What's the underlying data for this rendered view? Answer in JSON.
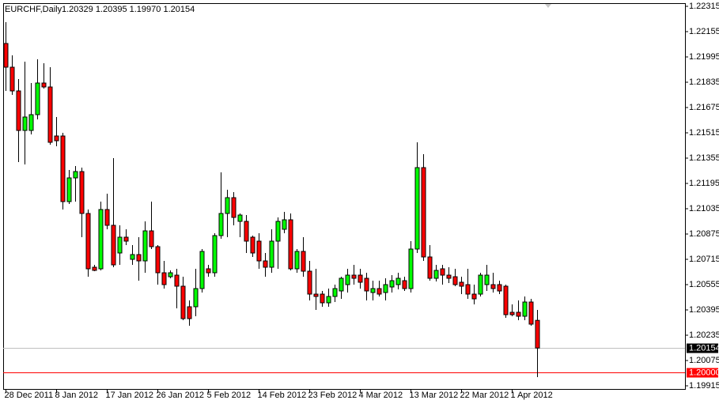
{
  "chart_data": {
    "type": "candlestick",
    "title": "EURCHF,Daily",
    "quote": "1.20329 1.20395 1.19970 1.20154",
    "categories": [
      "28 Dec 2011",
      null,
      null,
      null,
      null,
      null,
      null,
      null,
      "8 Jan 2012",
      null,
      null,
      null,
      null,
      null,
      null,
      null,
      "17 Jan 2012",
      null,
      null,
      null,
      null,
      null,
      null,
      null,
      "26 Jan 2012",
      null,
      null,
      null,
      null,
      null,
      null,
      null,
      "5 Feb 2012",
      null,
      null,
      null,
      null,
      null,
      null,
      null,
      "14 Feb 2012",
      null,
      null,
      null,
      null,
      null,
      null,
      null,
      "23 Feb 2012",
      null,
      null,
      null,
      null,
      null,
      null,
      null,
      "4 Mar 2012",
      null,
      null,
      null,
      null,
      null,
      null,
      null,
      "13 Mar 2012",
      null,
      null,
      null,
      null,
      null,
      null,
      null,
      "22 Mar 2012",
      null,
      null,
      null,
      null,
      null,
      null,
      null,
      "1 Apr 2012",
      null,
      null,
      null,
      null
    ],
    "open": [
      1.2208,
      1.2193,
      1.2178,
      1.2153,
      1.2153,
      1.2163,
      1.2183,
      1.21805,
      1.21495,
      1.21495,
      1.2108,
      1.2123,
      1.2127,
      1.21005,
      1.20665,
      1.20655,
      1.2103,
      1.2093,
      1.20755,
      1.20855,
      1.20715,
      1.20745,
      1.20705,
      1.20895,
      1.20795,
      1.2063,
      1.20605,
      1.20615,
      1.20545,
      1.20415,
      1.20415,
      1.2053,
      1.20655,
      1.2063,
      1.20865,
      1.21005,
      1.21105,
      1.20955,
      1.20955,
      1.20855,
      1.2083,
      1.20705,
      1.20665,
      1.2083,
      1.20905,
      1.20965,
      1.20655,
      1.20765,
      1.2064,
      1.20495,
      1.20495,
      1.2044,
      1.2048,
      1.20515,
      1.20555,
      1.20615,
      1.20615,
      1.20595,
      1.20505,
      1.2053,
      1.20505,
      1.2054,
      1.20555,
      1.2058,
      1.2053,
      1.2078,
      1.21295,
      1.2073,
      1.20595,
      1.20655,
      1.20615,
      1.20605,
      1.2057,
      1.20555,
      1.20495,
      1.20495,
      1.20555,
      1.20555,
      1.20555,
      1.20545,
      1.2038,
      1.2038,
      1.20355,
      1.20445,
      1.20329
    ],
    "high": [
      1.22215,
      1.22005,
      1.21855,
      1.21965,
      1.2183,
      1.2198,
      1.21955,
      1.2193,
      1.21615,
      1.21515,
      1.2128,
      1.21305,
      1.21295,
      1.2103,
      1.2068,
      1.2108,
      1.2113,
      1.21355,
      1.2093,
      1.20905,
      1.20805,
      1.20855,
      1.20955,
      1.2108,
      1.20805,
      1.20705,
      1.20645,
      1.20655,
      1.20605,
      1.20455,
      1.20655,
      1.2078,
      1.2068,
      1.2088,
      1.21265,
      1.21155,
      1.2114,
      1.21005,
      1.20995,
      1.20865,
      1.2088,
      1.20755,
      1.20905,
      1.2098,
      1.21015,
      1.21005,
      1.2078,
      1.20855,
      1.20705,
      1.20655,
      1.20515,
      1.2053,
      1.20555,
      1.20605,
      1.20655,
      1.2068,
      1.20655,
      1.2063,
      1.2058,
      1.2058,
      1.20595,
      1.20615,
      1.2063,
      1.20605,
      1.2083,
      1.21455,
      1.2138,
      1.20805,
      1.2068,
      1.2068,
      1.20665,
      1.20655,
      1.20605,
      1.20655,
      1.20555,
      1.2063,
      1.2068,
      1.2063,
      1.2058,
      1.20555,
      1.2043,
      1.20455,
      1.2048,
      1.20465,
      1.20395
    ],
    "low": [
      1.2178,
      1.21755,
      1.2133,
      1.21315,
      1.21505,
      1.216,
      1.21795,
      1.2144,
      1.2143,
      1.2103,
      1.21065,
      1.2108,
      1.20855,
      1.20605,
      1.2064,
      1.20645,
      1.20905,
      1.20665,
      1.2068,
      1.20805,
      1.2068,
      1.2058,
      1.2063,
      1.2078,
      1.20555,
      1.2053,
      1.20595,
      1.20405,
      1.2033,
      1.20295,
      1.20355,
      1.20505,
      1.20605,
      1.20605,
      1.20845,
      1.20855,
      1.2093,
      1.20855,
      1.20755,
      1.2073,
      1.20655,
      1.20605,
      1.2063,
      1.20655,
      1.2088,
      1.20645,
      1.2063,
      1.20605,
      1.20455,
      1.20395,
      1.20415,
      1.20415,
      1.20445,
      1.20465,
      1.20505,
      1.20555,
      1.2053,
      1.20455,
      1.20455,
      1.2048,
      1.20455,
      1.20505,
      1.20525,
      1.20515,
      1.20505,
      1.20755,
      1.20705,
      1.2058,
      1.20575,
      1.20555,
      1.20565,
      1.20545,
      1.20495,
      1.20465,
      1.2043,
      1.2048,
      1.20515,
      1.20505,
      1.20495,
      1.20345,
      1.20355,
      1.2033,
      1.2033,
      1.20295,
      1.1997
    ],
    "close": [
      1.2193,
      1.2178,
      1.2153,
      1.21615,
      1.2163,
      1.2183,
      1.21805,
      1.21455,
      1.21465,
      1.2108,
      1.2123,
      1.2127,
      1.21005,
      1.20655,
      1.20645,
      1.2103,
      1.2093,
      1.2068,
      1.20855,
      1.2083,
      1.20745,
      1.20705,
      1.20895,
      1.20795,
      1.2063,
      1.20555,
      1.2063,
      1.20545,
      1.2034,
      1.2034,
      1.2053,
      1.20765,
      1.2063,
      1.20865,
      1.21005,
      1.21105,
      1.2098,
      1.20995,
      1.2083,
      1.20755,
      1.20705,
      1.20665,
      1.2083,
      1.20955,
      1.20965,
      1.20655,
      1.20765,
      1.2064,
      1.20495,
      1.2048,
      1.2044,
      1.2048,
      1.2053,
      1.20595,
      1.20615,
      1.20595,
      1.2057,
      1.20515,
      1.2053,
      1.20495,
      1.20555,
      1.2058,
      1.20595,
      1.2053,
      1.2078,
      1.21295,
      1.2073,
      1.20595,
      1.20645,
      1.20615,
      1.20595,
      1.20555,
      1.20545,
      1.20495,
      1.20465,
      1.20615,
      1.20615,
      1.2053,
      1.20515,
      1.20365,
      1.20365,
      1.20355,
      1.20445,
      1.20305,
      1.20154
    ],
    "up_color": "#00ff00",
    "down_color": "#ff0000",
    "ylim": [
      1.19895,
      1.22335
    ],
    "yticks": [
      1.22315,
      1.22155,
      1.21995,
      1.21835,
      1.21675,
      1.21515,
      1.21355,
      1.21195,
      1.21035,
      1.20875,
      1.20715,
      1.20555,
      1.20395,
      1.20235,
      1.20075,
      1.19915
    ],
    "price_lines": [
      {
        "value": 1.20154,
        "label": "1.20154",
        "color": "#c0c0c0",
        "box_color": "#000000"
      },
      {
        "value": 1.2,
        "label": "1.20000",
        "color": "#ff0000",
        "box_color": "#ff0000"
      }
    ]
  }
}
